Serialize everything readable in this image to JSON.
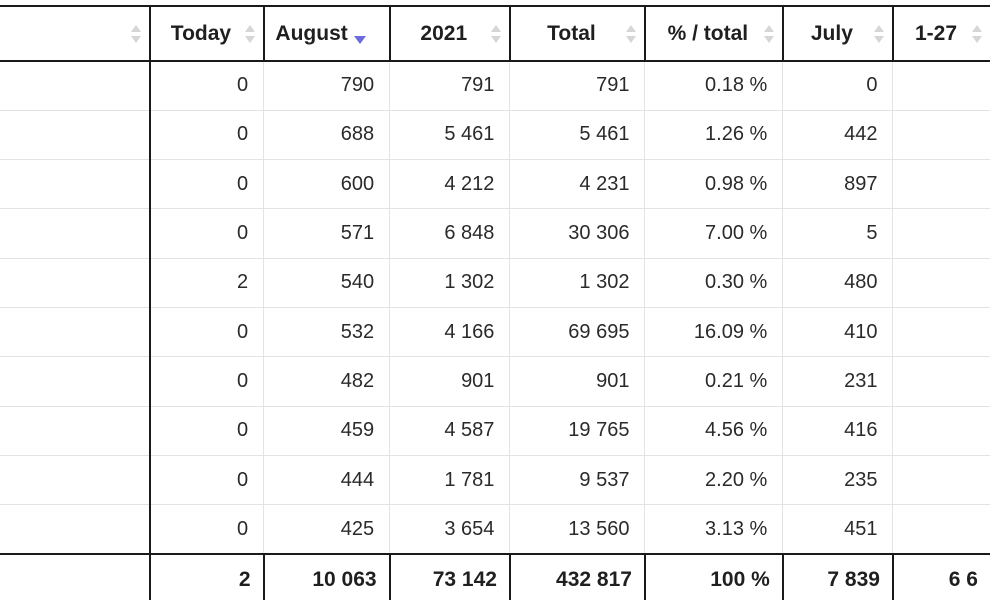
{
  "table": {
    "columns": [
      {
        "key": "name",
        "label": "",
        "sort": "none"
      },
      {
        "key": "today",
        "label": "Today",
        "sort": "none"
      },
      {
        "key": "august",
        "label": "August",
        "sort": "desc"
      },
      {
        "key": "y2021",
        "label": "2021",
        "sort": "none"
      },
      {
        "key": "total",
        "label": "Total",
        "sort": "none"
      },
      {
        "key": "pct",
        "label": "% / total",
        "sort": "none"
      },
      {
        "key": "july",
        "label": "July",
        "sort": "none"
      },
      {
        "key": "d127",
        "label": "1-27",
        "sort": "none"
      }
    ],
    "rows": [
      {
        "today": "0",
        "august": "790",
        "y2021": "791",
        "total": "791",
        "pct": "0.18 %",
        "july": "0",
        "d127": ""
      },
      {
        "today": "0",
        "august": "688",
        "y2021": "5 461",
        "total": "5 461",
        "pct": "1.26 %",
        "july": "442",
        "d127": ""
      },
      {
        "today": "0",
        "august": "600",
        "y2021": "4 212",
        "total": "4 231",
        "pct": "0.98 %",
        "july": "897",
        "d127": ""
      },
      {
        "today": "0",
        "august": "571",
        "y2021": "6 848",
        "total": "30 306",
        "pct": "7.00 %",
        "july": "5",
        "d127": ""
      },
      {
        "today": "2",
        "august": "540",
        "y2021": "1 302",
        "total": "1 302",
        "pct": "0.30 %",
        "july": "480",
        "d127": ""
      },
      {
        "today": "0",
        "august": "532",
        "y2021": "4 166",
        "total": "69 695",
        "pct": "16.09 %",
        "july": "410",
        "d127": ""
      },
      {
        "today": "0",
        "august": "482",
        "y2021": "901",
        "total": "901",
        "pct": "0.21 %",
        "july": "231",
        "d127": ""
      },
      {
        "today": "0",
        "august": "459",
        "y2021": "4 587",
        "total": "19 765",
        "pct": "4.56 %",
        "july": "416",
        "d127": ""
      },
      {
        "today": "0",
        "august": "444",
        "y2021": "1 781",
        "total": "9 537",
        "pct": "2.20 %",
        "july": "235",
        "d127": ""
      },
      {
        "today": "0",
        "august": "425",
        "y2021": "3 654",
        "total": "13 560",
        "pct": "3.13 %",
        "july": "451",
        "d127": ""
      }
    ],
    "totals": {
      "today": "2",
      "august": "10 063",
      "y2021": "73 142",
      "total": "432 817",
      "pct": "100 %",
      "july": "7 839",
      "d127": "6 6"
    }
  }
}
